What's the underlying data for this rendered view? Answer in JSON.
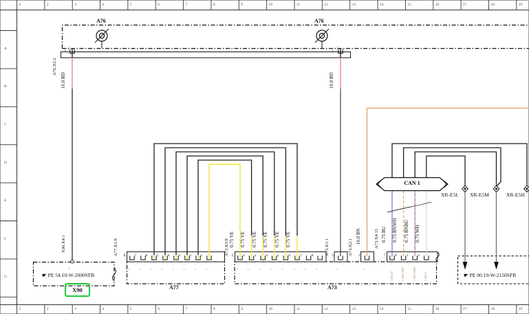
{
  "ruler": {
    "top": [
      "1",
      "2",
      "3",
      "4",
      "5",
      "6",
      "7",
      "8",
      "9",
      "10",
      "11",
      "12",
      "13",
      "14",
      "15",
      "16",
      "17",
      "18",
      "19"
    ],
    "bottom": [
      "1",
      "2",
      "3",
      "4",
      "5",
      "6",
      "7",
      "8",
      "9",
      "10",
      "11",
      "12",
      "13",
      "14",
      "15",
      "16",
      "17",
      "18",
      "19"
    ],
    "left": [
      "A",
      "B",
      "C",
      "D",
      "E",
      "F",
      "G"
    ]
  },
  "a76": {
    "label_left": "A76",
    "label_right": "A76",
    "pin_left": "2",
    "pin_right": "1",
    "wire_left": {
      "conn": "A76.X2:2",
      "gauge": "16.0 RD"
    },
    "wire_right": {
      "gauge": "16.0 RD"
    }
  },
  "x90": {
    "conn": "X90.X4:1",
    "hand": "☛",
    "pe": "PE 54.10-W-2000SFB",
    "tag": "X90"
  },
  "a77": {
    "label": "A77",
    "conn": "A77.X1:8",
    "pins": [
      "8",
      "7",
      "6",
      "5",
      "4",
      "3",
      "2",
      "1"
    ]
  },
  "a73": {
    "label": "A73",
    "x3": {
      "conn": "A73.X3:8",
      "pins": [
        "1",
        "2",
        "3",
        "4",
        "5",
        "6",
        "7",
        "8"
      ],
      "wires": [
        "0.75 YE",
        "0.75 YE",
        "0.75 YE",
        "0.75 YE",
        "0.75 YE",
        "0.75 YE"
      ]
    },
    "x1": {
      "conn": "A73.X1:1",
      "pin": "1"
    },
    "x2": {
      "conn": "A73.X2:1",
      "pin": "1",
      "gauge": "16.0 BN"
    },
    "x4": {
      "conn": "A73.X4:15",
      "pins": [
        "7",
        "8",
        "1",
        "2"
      ],
      "wires": [
        "0.75 BU",
        "0.75 BNWH",
        "0.75 BNBU",
        "0.75 WH"
      ],
      "signals": [
        "CAN H",
        "CAN GND",
        "CAN GND",
        "CAN L"
      ]
    }
  },
  "can_bus": {
    "label": "CAN 1"
  },
  "xr": {
    "left": "XR-E5L",
    "mid": "XR-E5M",
    "right": "XR-E5H"
  },
  "pe_right": {
    "hand": "☛",
    "pe": "PE 00.19-W-2150SFB"
  },
  "pin_submark": "2",
  "colors": {
    "wire_red": "#ef8f8f",
    "wire_brown": "#e2aa6d",
    "wire_yellow": "#f2e33c",
    "wire_blue": "#7d7dd2",
    "wire_white": "#d9d9d9",
    "wire_gray": "#7a7a7a",
    "highlight_green": "#1fc93c",
    "line": "#111111"
  }
}
